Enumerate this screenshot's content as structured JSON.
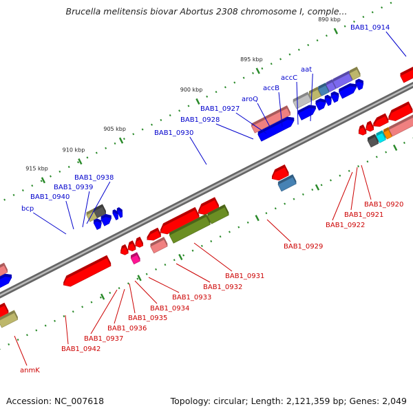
{
  "title": "Brucella melitensis biovar Abortus 2308 chromosome I, comple...",
  "footer": {
    "accession": "Accession: NC_007618",
    "stats": "Topology: circular; Length: 2,121,359 bp; Genes: 2,049"
  },
  "ticks": [
    "915 kbp",
    "910 kbp",
    "905 kbp",
    "900 kbp",
    "895 kbp",
    "890 kbp"
  ],
  "labels_plus": [
    "BAB1_0914",
    "aat",
    "accC",
    "accB",
    "aroQ",
    "BAB1_0927",
    "BAB1_0928",
    "BAB1_0930",
    "BAB1_0938",
    "BAB1_0939",
    "BAB1_0940",
    "bcp"
  ],
  "labels_minus": [
    "BAB1_0929",
    "BAB1_0920",
    "BAB1_0921",
    "BAB1_0922",
    "BAB1_0931",
    "BAB1_0932",
    "BAB1_0933",
    "BAB1_0934",
    "BAB1_0935",
    "BAB1_0936",
    "BAB1_0937",
    "BAB1_0942",
    "anmK"
  ],
  "colors": {
    "plus_label": "#0000cc",
    "minus_label": "#cc0000",
    "backbone": "#888888",
    "tick_mark": "#2a8a2a",
    "blue": "#0000ff",
    "red": "#ff0000",
    "pink": "#f08080",
    "khaki": "#bdb76b",
    "olive": "#6b8e23",
    "grey": "#c0c0c0",
    "dark_grey": "#555555",
    "steel": "#4682b4",
    "slate": "#7b68ee",
    "cyan": "#00e5ee",
    "magenta": "#ff1493",
    "orange": "#ff8c00"
  }
}
